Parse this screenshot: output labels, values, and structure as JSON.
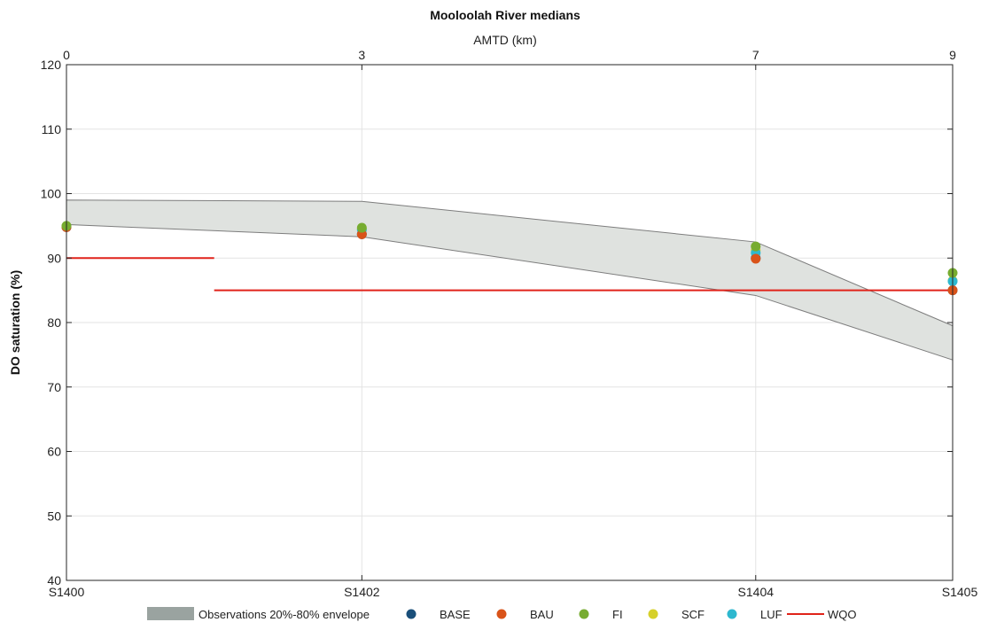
{
  "chart_data": {
    "type": "scatter",
    "title": "Mooloolah River medians",
    "xlabel_top": "AMTD (km)",
    "ylabel": "DO saturation (%)",
    "ylim": [
      40,
      120
    ],
    "yticks": [
      40,
      50,
      60,
      70,
      80,
      90,
      100,
      110,
      120
    ],
    "xlim": [
      0,
      9
    ],
    "top_ticks": [
      {
        "x": 0,
        "label": "0"
      },
      {
        "x": 3,
        "label": "3"
      },
      {
        "x": 7,
        "label": "7"
      },
      {
        "x": 9,
        "label": "9"
      }
    ],
    "bottom_ticks": [
      {
        "x": 0,
        "label": "S1400"
      },
      {
        "x": 3,
        "label": "S1402"
      },
      {
        "x": 7,
        "label": "S1404"
      },
      {
        "x": 9,
        "label": "S1405"
      }
    ],
    "grid": true,
    "envelope": {
      "name": "Observations 20%-80% envelope",
      "color": "#b9bfbb",
      "x": [
        0,
        3,
        7,
        9
      ],
      "upper": [
        99,
        98.8,
        92.5,
        79.5
      ],
      "lower": [
        95.2,
        93.3,
        84.2,
        74.2
      ]
    },
    "series": [
      {
        "name": "BASE",
        "color": "#1a4f7a",
        "x": [
          0,
          3,
          7,
          9
        ],
        "values": [
          94.8,
          93.7,
          90.0,
          85.0
        ]
      },
      {
        "name": "BAU",
        "color": "#d95319",
        "x": [
          0,
          3,
          7,
          9
        ],
        "values": [
          94.8,
          93.7,
          89.9,
          85.0
        ]
      },
      {
        "name": "FI",
        "color": "#77ac30",
        "x": [
          0,
          3,
          7,
          9
        ],
        "values": [
          95.0,
          94.7,
          91.8,
          87.7
        ]
      },
      {
        "name": "SCF",
        "color": "#d6d02a",
        "x": [
          0,
          3,
          7,
          9
        ],
        "values": [
          94.9,
          94.5,
          91.2,
          86.5
        ]
      },
      {
        "name": "LUF",
        "color": "#2eb8cf",
        "x": [
          0,
          3,
          7,
          9
        ],
        "values": [
          94.9,
          94.4,
          90.8,
          86.4
        ]
      }
    ],
    "wqo": {
      "name": "WQO",
      "color": "#e0231a",
      "segments": [
        {
          "x1": 0,
          "x2": 1.5,
          "y": 90
        },
        {
          "x1": 1.5,
          "x2": 9,
          "y": 85
        }
      ]
    },
    "legend_position": "bottom"
  }
}
